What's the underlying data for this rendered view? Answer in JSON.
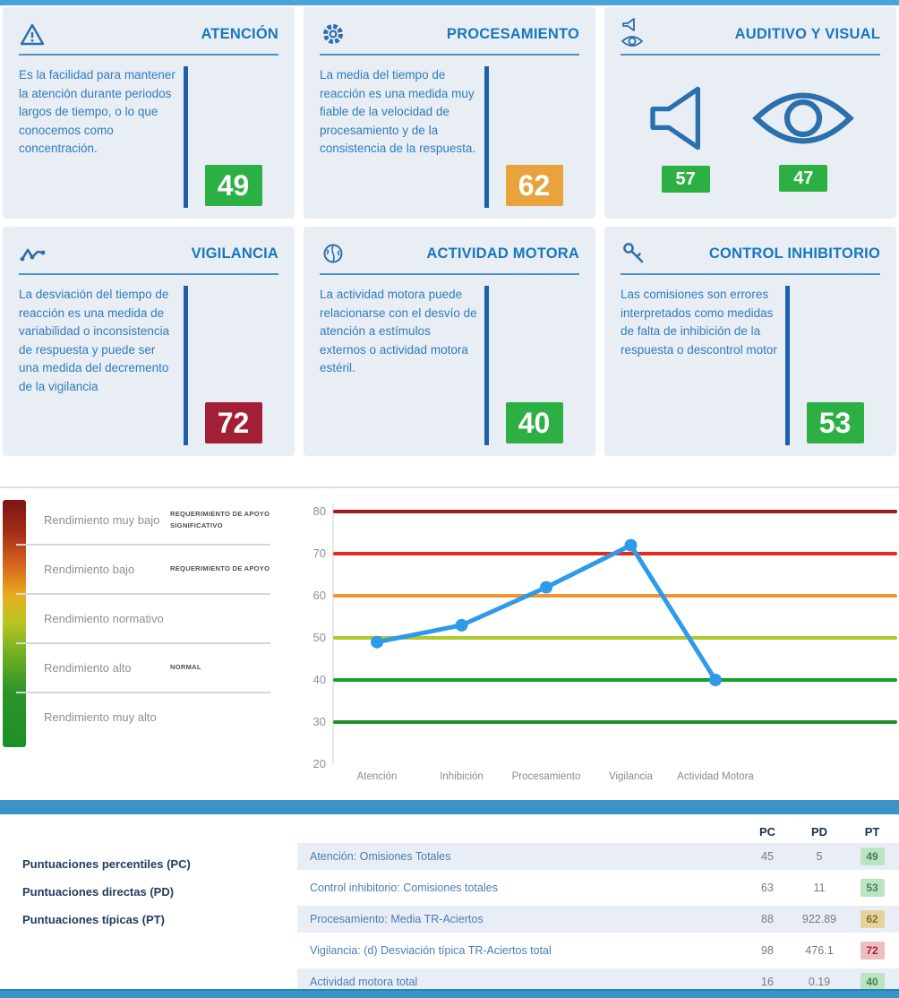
{
  "palette": {
    "score_green": "#2cb043",
    "score_orange": "#e8a33d",
    "score_red": "#a31f35",
    "line_blue": "#2f9ae8",
    "bar_blue": "#3b94c9",
    "card_bg": "#e9eef5",
    "title_blue": "#1878be",
    "icon_blue": "#2c6fad"
  },
  "cards": [
    {
      "title": "ATENCIÓN",
      "icon": "warning-triangle-icon",
      "description": "Es la facilidad para mantener la atención durante periodos largos de tiempo, o lo que conocemos como concentración.",
      "score": "49",
      "score_color": "#2cb043"
    },
    {
      "title": "PROCESAMIENTO",
      "icon": "gear-icon",
      "description": "La media del tiempo de reacción es una medida muy fiable de la velocidad de procesamiento y de la consistencia de la respuesta.",
      "score": "62",
      "score_color": "#e8a33d"
    },
    {
      "title": "AUDITIVO Y VISUAL",
      "icon": "speaker-eye-icon",
      "auditory_score": "57",
      "auditory_score_color": "#2cb043",
      "visual_score": "47",
      "visual_score_color": "#2cb043"
    },
    {
      "title": "VIGILANCIA",
      "icon": "pulse-icon",
      "description": "La desviación del tiempo de reacción es una medida de variabilidad o inconsistencia de respuesta y puede ser una medida del decremento de la vigilancia",
      "score": "72",
      "score_color": "#a31f35"
    },
    {
      "title": "ACTIVIDAD MOTORA",
      "icon": "brain-icon",
      "description": "La actividad motora puede relacionarse con el desvío de atención a estímulos externos o actividad motora estéril.",
      "score": "40",
      "score_color": "#2cb043"
    },
    {
      "title": "CONTROL INHIBITORIO",
      "icon": "key-icon",
      "description": "Las comisiones son errores interpretados como medidas de falta de inhibición de la respuesta o descontrol motor",
      "score": "53",
      "score_color": "#2cb043"
    }
  ],
  "performance_legend": {
    "rows": [
      {
        "label": "Rendimiento muy bajo",
        "tag": "REQUERIMIENTO DE APOYO SIGNIFICATIVO"
      },
      {
        "label": "Rendimiento bajo",
        "tag": "REQUERIMIENTO DE APOYO"
      },
      {
        "label": "Rendimiento normativo",
        "tag": ""
      },
      {
        "label": "Rendimiento alto",
        "tag": "NORMAL"
      },
      {
        "label": "Rendimiento muy alto",
        "tag": ""
      }
    ]
  },
  "chart_data": {
    "type": "line",
    "categories": [
      "Atención",
      "Inhibición",
      "Procesamiento",
      "Vigilancia",
      "Actividad Motora"
    ],
    "values": [
      49,
      53,
      62,
      72,
      40
    ],
    "title": "",
    "xlabel": "",
    "ylabel": "",
    "ylim": [
      20,
      80
    ],
    "yticks": [
      20,
      30,
      40,
      50,
      60,
      70,
      80
    ],
    "grid": "horizontal-colored-threshold-lines",
    "legend_position": "left",
    "line_color": "#2f9ae8",
    "gridlines": [
      {
        "y": 80,
        "color": "#9c1b1e"
      },
      {
        "y": 70,
        "color": "#e52a22"
      },
      {
        "y": 60,
        "color": "#f0952f"
      },
      {
        "y": 50,
        "color": "#b0ca2a"
      },
      {
        "y": 40,
        "color": "#12a12e"
      },
      {
        "y": 30,
        "color": "#1d8f2b"
      }
    ]
  },
  "scores_table": {
    "legend_labels": [
      "Puntuaciones percentiles (PC)",
      "Puntuaciones directas (PD)",
      "Puntuaciones típicas (PT)"
    ],
    "columns": [
      "PC",
      "PD",
      "PT"
    ],
    "rows": [
      {
        "label": "Atención: Omisiones Totales",
        "pc": "45",
        "pd": "5",
        "pt": "49",
        "pt_level": "green"
      },
      {
        "label": "Control inhibitorio: Comisiones totales",
        "pc": "63",
        "pd": "11",
        "pt": "53",
        "pt_level": "green"
      },
      {
        "label": "Procesamiento: Media TR-Aciertos",
        "pc": "88",
        "pd": "922.89",
        "pt": "62",
        "pt_level": "orange"
      },
      {
        "label": "Vigilancia: (d) Desviación típica TR-Aciertos total",
        "pc": "98",
        "pd": "476.1",
        "pt": "72",
        "pt_level": "red"
      },
      {
        "label": "Actividad motora total",
        "pc": "16",
        "pd": "0.19",
        "pt": "40",
        "pt_level": "green"
      }
    ]
  }
}
